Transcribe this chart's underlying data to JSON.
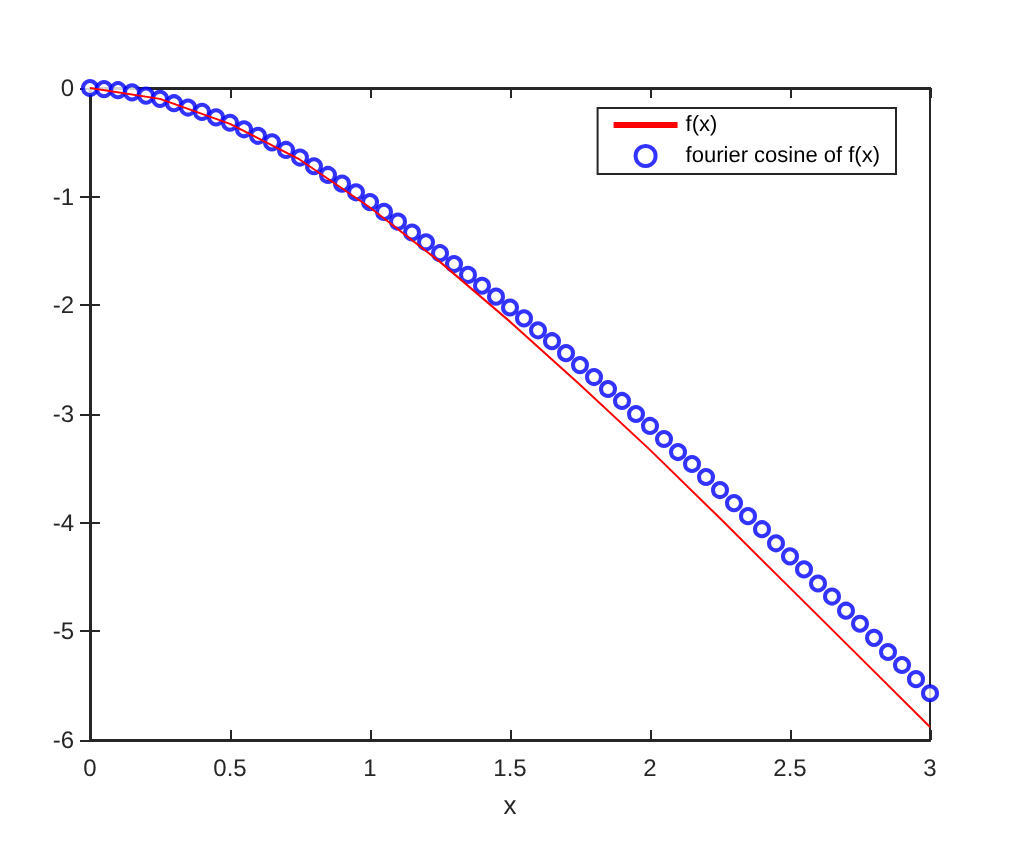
{
  "chart_data": {
    "type": "line",
    "xlabel": "x",
    "xlim": [
      0,
      3
    ],
    "ylim": [
      -6,
      0
    ],
    "xticks": [
      0,
      0.5,
      1,
      1.5,
      2,
      2.5,
      3
    ],
    "yticks": [
      -6,
      -5,
      -4,
      -3,
      -2,
      -1,
      0
    ],
    "grid": false,
    "legend": "top right",
    "series": [
      {
        "name": "f(x)",
        "color": "#ff0000",
        "marker": "none",
        "line_style": "solid",
        "x": [
          0,
          0.25,
          0.5,
          0.75,
          1,
          1.25,
          1.5,
          1.75,
          2,
          2.25,
          2.5,
          2.75,
          3
        ],
        "values": [
          0,
          -0.1,
          -0.33,
          -0.66,
          -1.1,
          -1.6,
          -2.15,
          -2.73,
          -3.33,
          -3.96,
          -4.6,
          -5.24,
          -5.88
        ]
      },
      {
        "name": "fourier cosine of f(x)",
        "type": "scatter",
        "color": "#0000ff",
        "marker": "circle",
        "x": [
          0,
          0.05,
          0.1,
          0.15,
          0.2,
          0.25,
          0.3,
          0.35,
          0.4,
          0.45,
          0.5,
          0.55,
          0.6,
          0.65,
          0.7,
          0.75,
          0.8,
          0.85,
          0.9,
          0.95,
          1,
          1.05,
          1.1,
          1.15,
          1.2,
          1.25,
          1.3,
          1.35,
          1.4,
          1.45,
          1.5,
          1.55,
          1.6,
          1.65,
          1.7,
          1.75,
          1.8,
          1.85,
          1.9,
          1.95,
          2,
          2.05,
          2.1,
          2.15,
          2.2,
          2.25,
          2.3,
          2.35,
          2.4,
          2.45,
          2.5,
          2.55,
          2.6,
          2.65,
          2.7,
          2.75,
          2.8,
          2.85,
          2.9,
          2.95,
          3
        ],
        "values": [
          0,
          -0.01,
          -0.02,
          -0.04,
          -0.07,
          -0.1,
          -0.14,
          -0.18,
          -0.22,
          -0.27,
          -0.32,
          -0.38,
          -0.44,
          -0.5,
          -0.57,
          -0.64,
          -0.72,
          -0.8,
          -0.88,
          -0.96,
          -1.05,
          -1.14,
          -1.23,
          -1.33,
          -1.42,
          -1.52,
          -1.62,
          -1.72,
          -1.82,
          -1.92,
          -2.02,
          -2.12,
          -2.23,
          -2.33,
          -2.44,
          -2.55,
          -2.66,
          -2.77,
          -2.88,
          -3,
          -3.11,
          -3.23,
          -3.35,
          -3.46,
          -3.58,
          -3.7,
          -3.82,
          -3.94,
          -4.06,
          -4.19,
          -4.31,
          -4.43,
          -4.56,
          -4.68,
          -4.81,
          -4.93,
          -5.06,
          -5.19,
          -5.31,
          -5.44,
          -5.57
        ]
      }
    ]
  }
}
